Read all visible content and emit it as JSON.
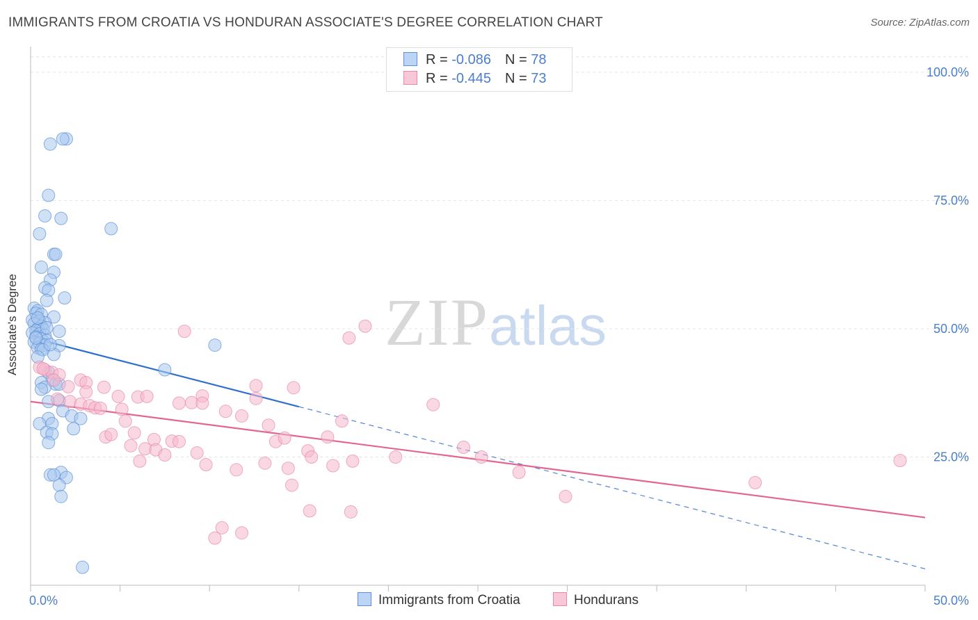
{
  "title": "IMMIGRANTS FROM CROATIA VS HONDURAN ASSOCIATE'S DEGREE CORRELATION CHART",
  "source": "Source: ZipAtlas.com",
  "watermark": {
    "zip": "ZIP",
    "atlas": "atlas"
  },
  "legend_top": [
    {
      "r_label": "R = ",
      "r_value": "-0.086",
      "n_label": "N = ",
      "n_value": "78"
    },
    {
      "r_label": "R = ",
      "r_value": "-0.445",
      "n_label": "N = ",
      "n_value": "73"
    }
  ],
  "bottom_legend": [
    "Immigrants from Croatia",
    "Hondurans"
  ],
  "colors": {
    "blue_fill": "#a9c8ef",
    "blue_stroke": "#5b8fd6",
    "blue_line": "#2f6fcc",
    "pink_fill": "#f6b8cc",
    "pink_stroke": "#e889a8",
    "pink_line": "#e26592",
    "tick": "#4a7fc9"
  },
  "chart_data": {
    "type": "scatter",
    "title": "IMMIGRANTS FROM CROATIA VS HONDURAN ASSOCIATE'S DEGREE CORRELATION CHART",
    "xlabel": "",
    "ylabel": "Associate's Degree",
    "xlim": [
      0,
      50
    ],
    "ylim": [
      0,
      105
    ],
    "x_tick_labels": [
      "0.0%",
      "50.0%"
    ],
    "y_ticks": [
      25,
      50,
      75,
      100
    ],
    "y_tick_labels": [
      "25.0%",
      "50.0%",
      "75.0%",
      "100.0%"
    ],
    "grid": true,
    "legend_placement": "top-center",
    "series": [
      {
        "name": "Immigrants from Croatia",
        "trend": {
          "x": [
            0,
            15
          ],
          "y": [
            48.3,
            34.8
          ],
          "dashed_to": [
            50,
            3.2
          ]
        },
        "points": [
          [
            1.1,
            86
          ],
          [
            2.0,
            87
          ],
          [
            1.8,
            87
          ],
          [
            1.0,
            76
          ],
          [
            0.8,
            72
          ],
          [
            1.7,
            71.5
          ],
          [
            0.5,
            68.5
          ],
          [
            4.5,
            69.5
          ],
          [
            1.3,
            64.5
          ],
          [
            1.4,
            64.5
          ],
          [
            0.6,
            62
          ],
          [
            1.3,
            61
          ],
          [
            1.1,
            59.5
          ],
          [
            0.8,
            58
          ],
          [
            1.0,
            57.5
          ],
          [
            1.9,
            56
          ],
          [
            0.9,
            55.5
          ],
          [
            0.2,
            54
          ],
          [
            0.4,
            53.5
          ],
          [
            0.3,
            53
          ],
          [
            0.6,
            52.8
          ],
          [
            1.3,
            52.3
          ],
          [
            0.1,
            51.7
          ],
          [
            0.5,
            51.5
          ],
          [
            0.8,
            51.2
          ],
          [
            0.2,
            51
          ],
          [
            0.6,
            50.5
          ],
          [
            0.4,
            50
          ],
          [
            0.7,
            49.9
          ],
          [
            0.3,
            49.6
          ],
          [
            1.6,
            49.5
          ],
          [
            0.1,
            49.2
          ],
          [
            0.5,
            49
          ],
          [
            0.8,
            48.7
          ],
          [
            0.3,
            48.4
          ],
          [
            0.6,
            48
          ],
          [
            0.9,
            47.7
          ],
          [
            0.2,
            47.4
          ],
          [
            0.5,
            47.2
          ],
          [
            0.8,
            46.8
          ],
          [
            1.6,
            46.7
          ],
          [
            0.4,
            46.3
          ],
          [
            0.6,
            46
          ],
          [
            0.7,
            45.9
          ],
          [
            10.3,
            46.8
          ],
          [
            1.3,
            45
          ],
          [
            0.4,
            44.5
          ],
          [
            7.5,
            42
          ],
          [
            1.0,
            41.5
          ],
          [
            1.2,
            40
          ],
          [
            0.6,
            39.5
          ],
          [
            1.4,
            39.2
          ],
          [
            1.6,
            39.2
          ],
          [
            0.8,
            38.6
          ],
          [
            0.6,
            38.2
          ],
          [
            1.0,
            35.8
          ],
          [
            1.6,
            36
          ],
          [
            1.8,
            34
          ],
          [
            2.3,
            33
          ],
          [
            2.8,
            32.5
          ],
          [
            1.0,
            32.5
          ],
          [
            0.5,
            31.5
          ],
          [
            1.2,
            31.5
          ],
          [
            2.4,
            30.5
          ],
          [
            0.9,
            29.8
          ],
          [
            1.2,
            29.5
          ],
          [
            1.0,
            27.8
          ],
          [
            1.7,
            22
          ],
          [
            1.1,
            21.5
          ],
          [
            1.3,
            21.5
          ],
          [
            2.0,
            21
          ],
          [
            1.6,
            19.5
          ],
          [
            1.7,
            17.3
          ],
          [
            2.9,
            3.5
          ],
          [
            0.3,
            48.2
          ],
          [
            0.9,
            50.2
          ],
          [
            0.4,
            52.1
          ],
          [
            1.1,
            46.9
          ]
        ]
      },
      {
        "name": "Hondurans",
        "trend": {
          "x": [
            0,
            50
          ],
          "y": [
            35.8,
            13.2
          ]
        },
        "points": [
          [
            0.5,
            42.5
          ],
          [
            0.8,
            42
          ],
          [
            1.2,
            41.5
          ],
          [
            1.6,
            41
          ],
          [
            1.3,
            40
          ],
          [
            2.8,
            40
          ],
          [
            3.1,
            39.5
          ],
          [
            2.1,
            38.7
          ],
          [
            4.1,
            38.6
          ],
          [
            3.1,
            37.7
          ],
          [
            1.5,
            36.3
          ],
          [
            2.2,
            35.8
          ],
          [
            2.8,
            35.3
          ],
          [
            3.3,
            35
          ],
          [
            3.6,
            34.6
          ],
          [
            4.9,
            36.8
          ],
          [
            6.0,
            36.7
          ],
          [
            6.5,
            36.8
          ],
          [
            8.3,
            35.5
          ],
          [
            9.0,
            35.6
          ],
          [
            9.6,
            36.9
          ],
          [
            9.6,
            35.5
          ],
          [
            10.9,
            33.9
          ],
          [
            11.8,
            33
          ],
          [
            5.1,
            34.3
          ],
          [
            3.9,
            34.5
          ],
          [
            5.3,
            32
          ],
          [
            4.2,
            28.9
          ],
          [
            4.5,
            29.4
          ],
          [
            5.8,
            29.7
          ],
          [
            5.6,
            27.2
          ],
          [
            6.1,
            24.2
          ],
          [
            6.4,
            26.6
          ],
          [
            6.9,
            28.4
          ],
          [
            7.0,
            26.4
          ],
          [
            7.5,
            25.4
          ],
          [
            7.9,
            28.1
          ],
          [
            8.3,
            28
          ],
          [
            9.3,
            25.8
          ],
          [
            9.8,
            23.5
          ],
          [
            11.5,
            22.5
          ],
          [
            12.6,
            38.9
          ],
          [
            12.6,
            36.4
          ],
          [
            13.1,
            23.8
          ],
          [
            13.3,
            31.2
          ],
          [
            13.7,
            28
          ],
          [
            14.2,
            28.7
          ],
          [
            14.7,
            38.5
          ],
          [
            14.4,
            22.8
          ],
          [
            14.6,
            19.5
          ],
          [
            15.5,
            26.2
          ],
          [
            15.7,
            25
          ],
          [
            16.6,
            28.9
          ],
          [
            16.9,
            23.3
          ],
          [
            17.4,
            32
          ],
          [
            18.0,
            24.2
          ],
          [
            17.8,
            48.2
          ],
          [
            18.7,
            50.5
          ],
          [
            8.6,
            49.5
          ],
          [
            10.7,
            11.2
          ],
          [
            10.3,
            9.2
          ],
          [
            11.8,
            10.2
          ],
          [
            15.6,
            14.5
          ],
          [
            17.9,
            14.3
          ],
          [
            20.4,
            25
          ],
          [
            22.5,
            35.2
          ],
          [
            24.2,
            26.9
          ],
          [
            25.2,
            25
          ],
          [
            27.3,
            22
          ],
          [
            29.9,
            17.3
          ],
          [
            40.5,
            20
          ],
          [
            48.6,
            24.3
          ],
          [
            0.7,
            42.2
          ]
        ]
      }
    ]
  }
}
